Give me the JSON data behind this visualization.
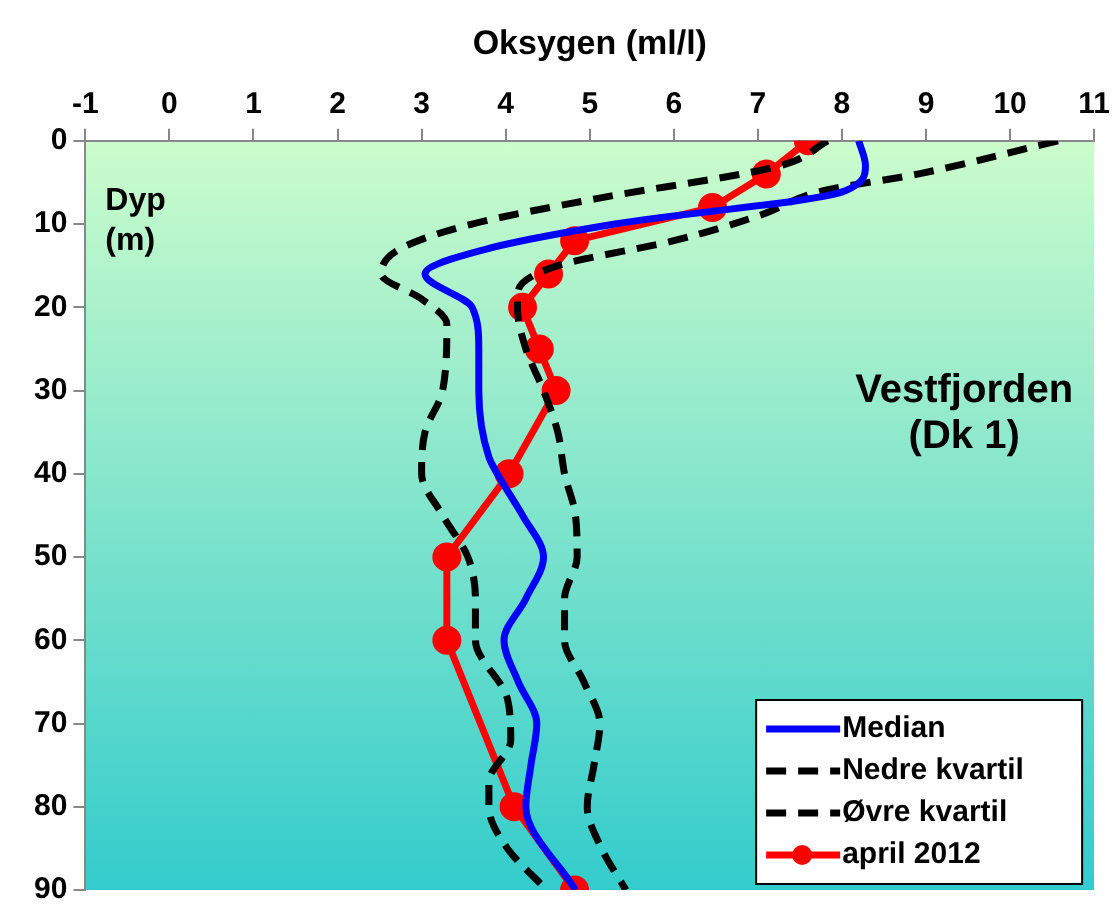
{
  "chart_data": {
    "type": "line",
    "xlabel": "Oksygen (ml/l)",
    "ylabel": "Dyp (m)",
    "annotations": [
      "Vestfjorden (Dk 1)"
    ],
    "xlim": [
      -1,
      11
    ],
    "xticks": [
      -1,
      0,
      1,
      2,
      3,
      4,
      5,
      6,
      7,
      8,
      9,
      10,
      11
    ],
    "ylim": [
      90,
      0
    ],
    "yticks": [
      0,
      10,
      20,
      30,
      40,
      50,
      60,
      70,
      80,
      90
    ],
    "grid": false,
    "legend": "bottom right",
    "series": [
      {
        "name": "Median",
        "color": "#0000ff",
        "line_style": "solid",
        "marker": "none",
        "x": [
          8.2,
          8.28,
          8.04,
          5.3,
          3.77,
          3.04,
          3.6,
          3.68,
          3.68,
          3.8,
          3.9,
          4.2,
          4.45,
          4.24,
          3.98,
          4.15,
          4.37,
          4.3,
          4.24,
          4.83
        ],
        "values": [
          0,
          3,
          6,
          10,
          13,
          16,
          20,
          25,
          30,
          38,
          40,
          45,
          50,
          55,
          60,
          65,
          70,
          75,
          80,
          90
        ]
      },
      {
        "name": "Nedre kvartil",
        "color": "#000000",
        "line_style": "dashed",
        "marker": "none",
        "x": [
          7.83,
          7.26,
          5.05,
          3.6,
          2.74,
          2.52,
          3.0,
          3.3,
          3.25,
          3.04,
          3.0,
          3.25,
          3.55,
          3.64,
          3.64,
          4.02,
          4.06,
          3.8,
          3.8,
          4.02,
          4.49
        ],
        "values": [
          0,
          3,
          7,
          10,
          13,
          16,
          19,
          22,
          30,
          35,
          40,
          45,
          50,
          55,
          60,
          67,
          72,
          77,
          80,
          85,
          90
        ]
      },
      {
        "name": "Øvre kvartil",
        "color": "#000000",
        "line_style": "dashed",
        "marker": "none",
        "x": [
          10.57,
          8.9,
          7.78,
          7.01,
          6.0,
          4.62,
          4.15,
          4.14,
          4.24,
          4.45,
          4.62,
          4.7,
          4.83,
          4.85,
          4.7,
          4.7,
          4.93,
          5.12,
          5.05,
          4.97,
          5.14,
          5.43
        ],
        "values": [
          0,
          4,
          6,
          9,
          12,
          15,
          18,
          20,
          25,
          30,
          35,
          40,
          45,
          50,
          55,
          60,
          65,
          70,
          75,
          80,
          85,
          90
        ]
      },
      {
        "name": "april 2012",
        "color": "#ff0000",
        "line_style": "solid",
        "marker": "circle",
        "x": [
          7.6,
          7.1,
          6.46,
          4.82,
          4.51,
          4.2,
          4.4,
          4.6,
          4.04,
          3.3,
          3.3,
          4.1,
          4.82
        ],
        "values": [
          0,
          4,
          8,
          12,
          16,
          20,
          25,
          30,
          40,
          50,
          60,
          80,
          90
        ]
      }
    ]
  }
}
